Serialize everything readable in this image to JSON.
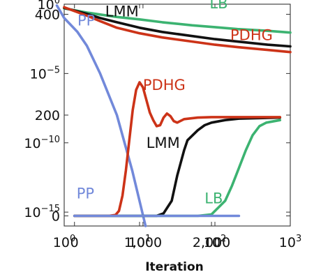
{
  "chart_data": [
    {
      "type": "line",
      "xscale": "log",
      "yscale": "log",
      "xlim": [
        1,
        1000
      ],
      "ylim": [
        1e-16,
        1
      ],
      "x_ticks": [
        {
          "base": "10",
          "exp": "0",
          "value": 1
        },
        {
          "base": "10",
          "exp": "1",
          "value": 10
        },
        {
          "base": "10",
          "exp": "2",
          "value": 100
        },
        {
          "base": "10",
          "exp": "3",
          "value": 1000
        }
      ],
      "y_ticks": [
        {
          "base": "10",
          "exp": "0",
          "value": 1
        },
        {
          "base": "10",
          "exp": "−5",
          "value": 1e-05
        },
        {
          "base": "10",
          "exp": "−10",
          "value": 1e-10
        },
        {
          "base": "10",
          "exp": "−15",
          "value": 1e-15
        }
      ],
      "xlabel": "",
      "series": [
        {
          "name": "LB",
          "color": "#3cb371",
          "label_at": [
            85,
            0.5
          ],
          "x": [
            1,
            2,
            3,
            5,
            10,
            20,
            50,
            100,
            200,
            500,
            1000
          ],
          "y": [
            0.5,
            0.25,
            0.18,
            0.12,
            0.08,
            0.05,
            0.03,
            0.022,
            0.016,
            0.012,
            0.009
          ]
        },
        {
          "name": "LMM",
          "color": "#111111",
          "label_at": [
            3.5,
            0.13
          ],
          "x": [
            1,
            2,
            3,
            5,
            10,
            20,
            50,
            100,
            200,
            500,
            1000
          ],
          "y": [
            0.55,
            0.2,
            0.1,
            0.05,
            0.02,
            0.01,
            0.005,
            0.003,
            0.002,
            0.0012,
            0.0009
          ]
        },
        {
          "name": "PDHG",
          "color": "#cc3318",
          "label_at": [
            160,
            0.0025
          ],
          "x": [
            1,
            2,
            3,
            5,
            10,
            20,
            50,
            100,
            200,
            500,
            1000
          ],
          "y": [
            0.6,
            0.15,
            0.06,
            0.02,
            0.008,
            0.004,
            0.002,
            0.0012,
            0.0008,
            0.0005,
            0.00035
          ]
        },
        {
          "name": "PP",
          "color": "#7289da",
          "label_at": [
            1.5,
            0.03
          ],
          "x": [
            0.8,
            1,
            1.5,
            2,
            3,
            5,
            8,
            12
          ],
          "y": [
            0.8,
            0.1,
            0.01,
            0.001,
            1e-05,
            1e-08,
            1e-12,
            1e-16
          ]
        }
      ]
    },
    {
      "type": "line",
      "xscale": "linear",
      "yscale": "linear",
      "xlim": [
        -150,
        3150
      ],
      "ylim": [
        -20,
        420
      ],
      "x_ticks": [
        {
          "label": "0",
          "value": 0
        },
        {
          "label": "1,000",
          "value": 1000
        },
        {
          "label": "2,000",
          "value": 2000
        }
      ],
      "y_ticks": [
        {
          "label": "0",
          "value": 0
        },
        {
          "label": "200",
          "value": 200
        },
        {
          "label": "400",
          "value": 400
        }
      ],
      "xlabel": "Iteration",
      "series": [
        {
          "name": "LMM",
          "color": "#111111",
          "label_at": [
            1050,
            135
          ],
          "x": [
            0,
            1000,
            1200,
            1300,
            1420,
            1500,
            1600,
            1650,
            1800,
            1900,
            2000,
            2200,
            2400,
            3000
          ],
          "y": [
            0,
            0,
            0,
            5,
            30,
            80,
            130,
            150,
            170,
            180,
            185,
            190,
            193,
            195
          ]
        },
        {
          "name": "LB",
          "color": "#3cb371",
          "label_at": [
            1900,
            25
          ],
          "x": [
            0,
            1500,
            1800,
            2000,
            2200,
            2300,
            2400,
            2500,
            2600,
            2700,
            2800,
            3000
          ],
          "y": [
            0,
            0,
            0,
            3,
            30,
            60,
            95,
            130,
            160,
            178,
            185,
            190
          ]
        },
        {
          "name": "PDHG",
          "color": "#cc3318",
          "label_at": [
            1000,
            250
          ],
          "x": [
            0,
            500,
            600,
            650,
            700,
            750,
            800,
            850,
            900,
            950,
            1000,
            1050,
            1100,
            1150,
            1200,
            1250,
            1300,
            1350,
            1400,
            1450,
            1500,
            1600,
            1800,
            2000,
            2400,
            3000
          ],
          "y": [
            0,
            0,
            2,
            10,
            40,
            90,
            150,
            210,
            250,
            265,
            255,
            230,
            205,
            190,
            178,
            180,
            195,
            203,
            198,
            188,
            185,
            192,
            195,
            196,
            196,
            196
          ]
        },
        {
          "name": "PP",
          "color": "#7289da",
          "label_at": [
            30,
            35
          ],
          "x": [
            0,
            2400
          ],
          "y": [
            0,
            0
          ]
        }
      ]
    }
  ]
}
